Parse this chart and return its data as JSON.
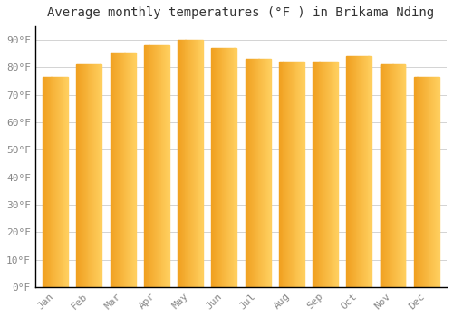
{
  "title": "Average monthly temperatures (°F ) in Brikama Nding",
  "months": [
    "Jan",
    "Feb",
    "Mar",
    "Apr",
    "May",
    "Jun",
    "Jul",
    "Aug",
    "Sep",
    "Oct",
    "Nov",
    "Dec"
  ],
  "values": [
    76.5,
    81.0,
    85.5,
    88.0,
    90.0,
    87.0,
    83.0,
    82.0,
    82.0,
    84.0,
    81.0,
    76.5
  ],
  "bar_color_left": "#F0A020",
  "bar_color_right": "#FFD060",
  "background_color": "#FFFFFF",
  "grid_color": "#CCCCCC",
  "text_color": "#888888",
  "spine_color": "#000000",
  "ylim": [
    0,
    95
  ],
  "yticks": [
    0,
    10,
    20,
    30,
    40,
    50,
    60,
    70,
    80,
    90
  ],
  "ytick_labels": [
    "0°F",
    "10°F",
    "20°F",
    "30°F",
    "40°F",
    "50°F",
    "60°F",
    "70°F",
    "80°F",
    "90°F"
  ],
  "title_fontsize": 10,
  "tick_fontsize": 8,
  "font_family": "monospace"
}
